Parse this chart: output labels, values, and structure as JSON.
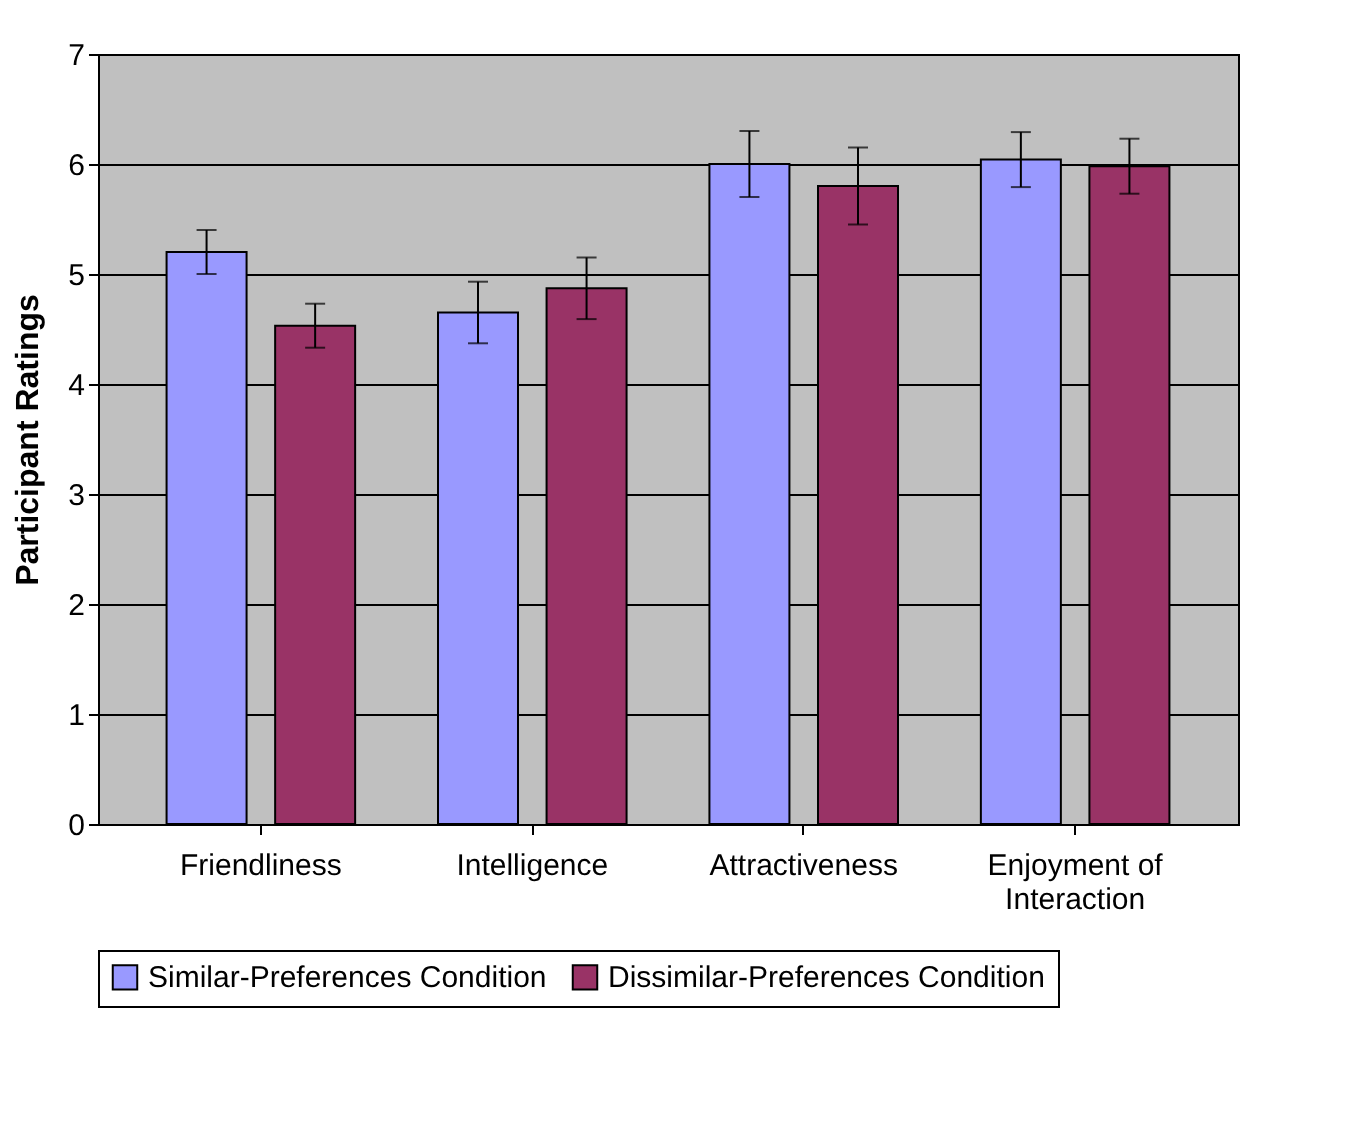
{
  "chart_data": {
    "type": "bar",
    "ylabel": "Participant Ratings",
    "categories": [
      "Friendliness",
      "Intelligence",
      "Attractiveness",
      "Enjoyment of\nInteraction"
    ],
    "series": [
      {
        "name": "Similar-Preferences Condition",
        "color": "#9999ff",
        "values": [
          5.2,
          4.65,
          6.0,
          6.04
        ],
        "errors": [
          0.2,
          0.28,
          0.3,
          0.25
        ]
      },
      {
        "name": "Dissimilar-Preferences Condition",
        "color": "#993366",
        "values": [
          4.53,
          4.87,
          5.8,
          5.98
        ],
        "errors": [
          0.2,
          0.28,
          0.35,
          0.25
        ]
      }
    ],
    "ylim": [
      0,
      7
    ],
    "yticks": [
      0,
      1,
      2,
      3,
      4,
      5,
      6,
      7
    ],
    "grid": "y",
    "legend": "bottom"
  }
}
